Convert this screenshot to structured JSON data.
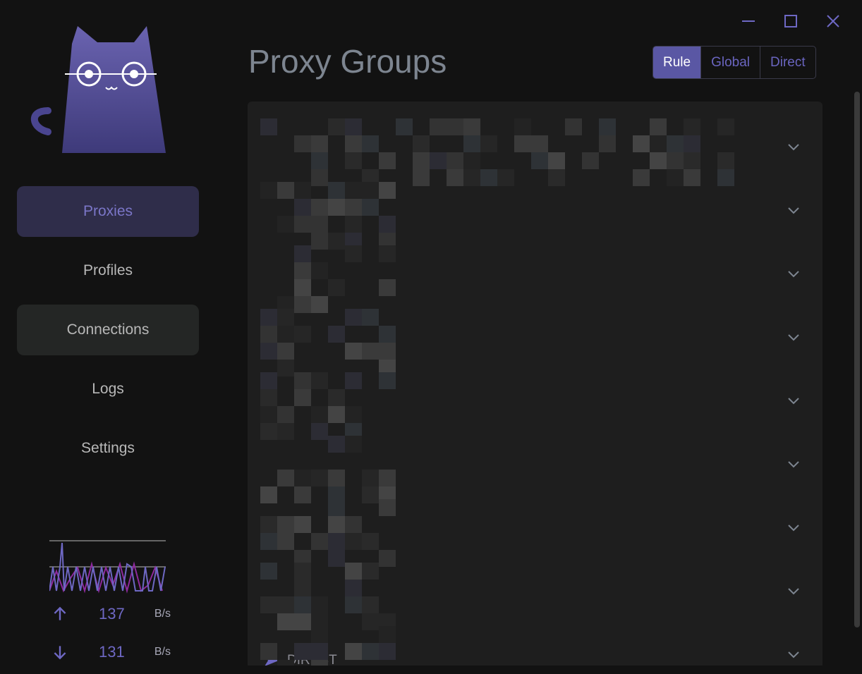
{
  "window": {
    "controls": [
      "minimize-icon",
      "maximize-icon",
      "close-icon"
    ]
  },
  "sidebar": {
    "items": [
      {
        "label": "Proxies",
        "state": "active"
      },
      {
        "label": "Profiles",
        "state": "normal"
      },
      {
        "label": "Connections",
        "state": "hover"
      },
      {
        "label": "Logs",
        "state": "normal"
      },
      {
        "label": "Settings",
        "state": "normal"
      }
    ],
    "traffic": {
      "up_value": "137",
      "up_unit": "B/s",
      "down_value": "131",
      "down_unit": "B/s"
    }
  },
  "header": {
    "title": "Proxy Groups",
    "modes": [
      {
        "label": "Rule",
        "active": true
      },
      {
        "label": "Global",
        "active": false
      },
      {
        "label": "Direct",
        "active": false
      }
    ]
  },
  "groups": {
    "count": 9,
    "last_group_selected": "DIRECT"
  },
  "colors": {
    "accent": "#5a57a4",
    "accent_text": "#6e68c4",
    "active_nav_bg": "#2f2d4a",
    "panel_bg": "#1e1e1e",
    "upload_line": "#6e68c4",
    "download_line": "#8e2a9e"
  }
}
